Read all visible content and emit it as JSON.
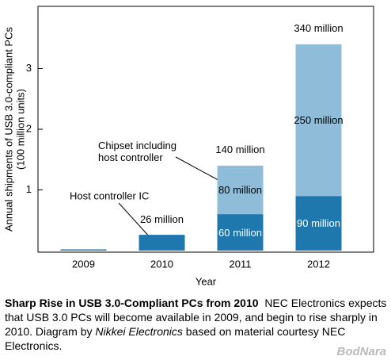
{
  "chart_data": {
    "type": "stacked_bar",
    "categories": [
      "2009",
      "2010",
      "2011",
      "2012"
    ],
    "series": [
      {
        "name": "Host controller IC",
        "color": "#1f78ad",
        "values": [
          0.02,
          0.26,
          0.6,
          0.9
        ],
        "value_labels": [
          null,
          "26 million",
          "60 million",
          "90 million"
        ],
        "label_color": "#ffffff"
      },
      {
        "name": "Chipset including host controller",
        "color": "#8fbcd9",
        "values": [
          0,
          0,
          0.8,
          2.5
        ],
        "value_labels": [
          null,
          null,
          "80 million",
          "250 million"
        ],
        "label_color": "#000000"
      }
    ],
    "annotations": [
      {
        "x": "2011",
        "text": "140 million"
      },
      {
        "x": "2012",
        "text": "340 million"
      }
    ],
    "ylim": [
      0,
      4
    ],
    "yticks": [
      1,
      2,
      3
    ],
    "ylabel": "Annual shipments of USB 3.0-compliant PCs",
    "ylabel_unit": "(100 million units)",
    "xlabel": "Year"
  },
  "caption": {
    "title": "Sharp Rise in USB 3.0-Compliant PCs from 2010",
    "text_1": "NEC Electronics expects that USB 3.0 PCs will become available in 2009, and begin to rise sharply in 2010. Diagram by",
    "source": "Nikkei Electronics",
    "text_2": "based on material courtesy NEC Electronics."
  },
  "watermark": "BodNara"
}
